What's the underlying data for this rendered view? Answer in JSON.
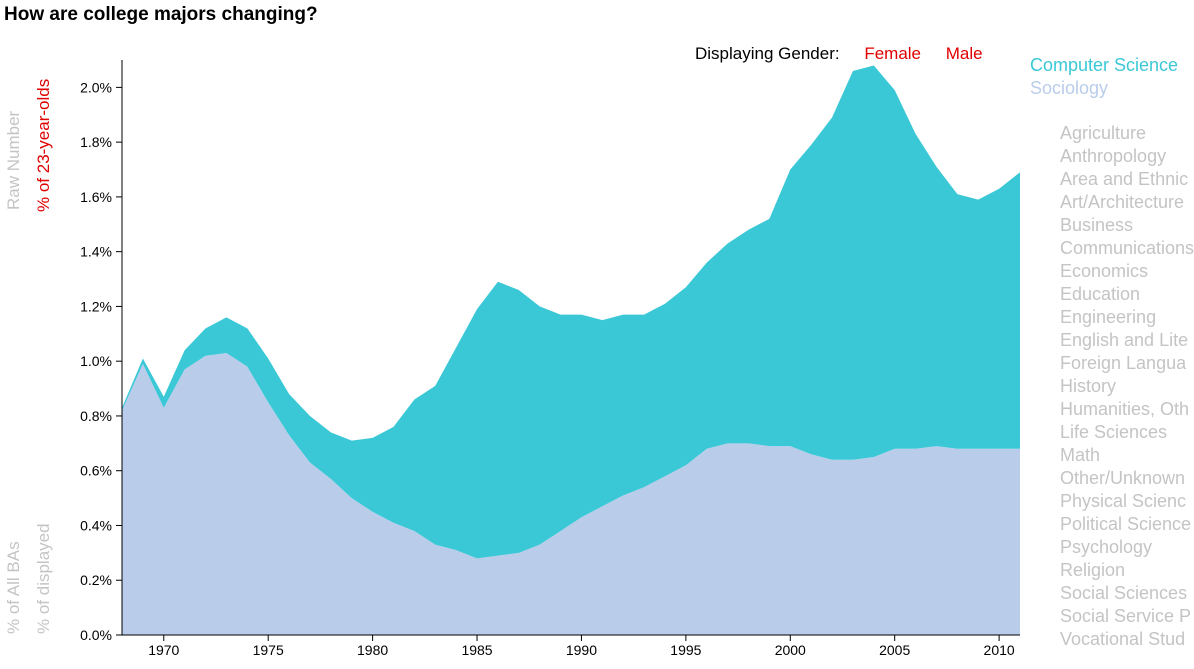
{
  "title": "How are college majors changing?",
  "y_axis_labels": {
    "raw_number": "Raw Number",
    "pct_23yo": "% of 23-year-olds",
    "pct_all_bas": "% of All BAs",
    "pct_displayed": "% of displayed"
  },
  "gender": {
    "label": "Displaying Gender:",
    "options": [
      "Female",
      "Male"
    ]
  },
  "selected_majors": [
    {
      "name": "Computer Science",
      "color": "#3ac8d6"
    },
    {
      "name": "Sociology",
      "color": "#b9cdeb"
    }
  ],
  "majors": [
    "Agriculture",
    "Anthropology",
    "Area and Ethnic",
    "Art/Architecture",
    "Business",
    "Communications",
    "Economics",
    "Education",
    "Engineering",
    "English and Lite",
    "Foreign Langua",
    "History",
    "Humanities, Oth",
    "Life Sciences",
    "Math",
    "Other/Unknown",
    "Physical Scienc",
    "Political Science",
    "Psychology",
    "Religion",
    "Social Sciences",
    "Social Service P",
    "Vocational Stud"
  ],
  "chart_data": {
    "type": "area",
    "stacked": true,
    "xlim": [
      1968,
      2011
    ],
    "ylim": [
      0,
      0.021
    ],
    "yticks": [
      "0.0%",
      "0.2%",
      "0.4%",
      "0.6%",
      "0.8%",
      "1.0%",
      "1.2%",
      "1.4%",
      "1.6%",
      "1.8%",
      "2.0%"
    ],
    "xticks": [
      "1970",
      "1975",
      "1980",
      "1985",
      "1990",
      "1995",
      "2000",
      "2005",
      "2010"
    ],
    "x": [
      1968,
      1969,
      1970,
      1971,
      1972,
      1973,
      1974,
      1975,
      1976,
      1977,
      1978,
      1979,
      1980,
      1981,
      1982,
      1983,
      1984,
      1985,
      1986,
      1987,
      1988,
      1989,
      1990,
      1991,
      1992,
      1993,
      1994,
      1995,
      1996,
      1997,
      1998,
      1999,
      2000,
      2001,
      2002,
      2003,
      2004,
      2005,
      2006,
      2007,
      2008,
      2009,
      2010,
      2011
    ],
    "series": [
      {
        "name": "Sociology",
        "color": "#b9cdeb",
        "values": [
          0.0082,
          0.0099,
          0.0083,
          0.0097,
          0.0102,
          0.0103,
          0.0098,
          0.0085,
          0.0073,
          0.0063,
          0.0057,
          0.005,
          0.0045,
          0.0041,
          0.0038,
          0.0033,
          0.0031,
          0.0028,
          0.0029,
          0.003,
          0.0033,
          0.0038,
          0.0043,
          0.0047,
          0.0051,
          0.0054,
          0.0058,
          0.0062,
          0.0068,
          0.007,
          0.007,
          0.0069,
          0.0069,
          0.0066,
          0.0064,
          0.0064,
          0.0065,
          0.0068,
          0.0068,
          0.0069,
          0.0068,
          0.0068,
          0.0068,
          0.0068
        ]
      },
      {
        "name": "Computer Science",
        "color": "#3ac8d6",
        "values": [
          0.0001,
          0.0002,
          0.0004,
          0.0007,
          0.001,
          0.0013,
          0.0014,
          0.0016,
          0.0015,
          0.0017,
          0.0017,
          0.0021,
          0.0027,
          0.0035,
          0.0048,
          0.0058,
          0.0074,
          0.0091,
          0.01,
          0.0096,
          0.0087,
          0.0079,
          0.0074,
          0.0068,
          0.0066,
          0.0063,
          0.0063,
          0.0065,
          0.0068,
          0.0073,
          0.0078,
          0.0083,
          0.0101,
          0.0113,
          0.0125,
          0.0142,
          0.0143,
          0.0131,
          0.0115,
          0.0102,
          0.0093,
          0.0091,
          0.0095,
          0.0101
        ]
      }
    ]
  }
}
